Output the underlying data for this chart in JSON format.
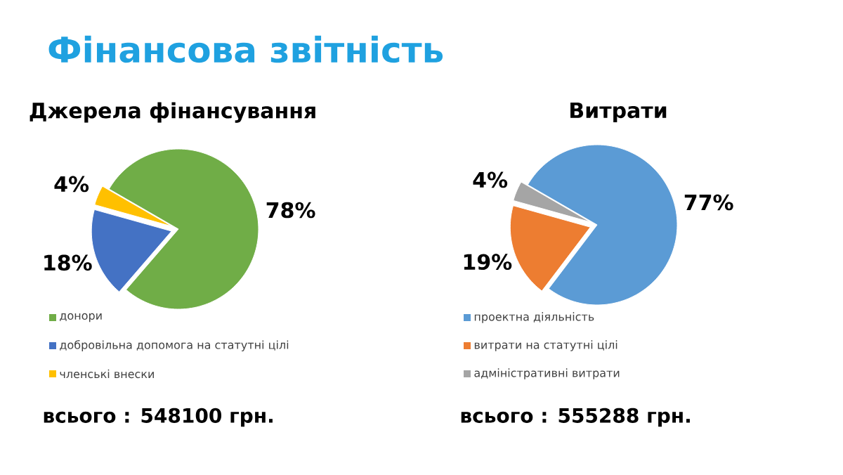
{
  "chart_data": [
    {
      "type": "pie",
      "title": "Фінансова звітність",
      "subtitle": "Джерела фінансування",
      "categories": [
        "донори",
        "добровільна допомога на статутні цілі",
        "членські внески"
      ],
      "values": [
        78,
        18,
        4
      ],
      "value_labels": [
        "78%",
        "18%",
        "4%"
      ],
      "colors": [
        "#70ad47",
        "#4472c4",
        "#ffc000"
      ],
      "legend": "bottom",
      "annotations": [
        "всього : 548100 грн."
      ]
    },
    {
      "type": "pie",
      "title": "Витрати",
      "categories": [
        "проектна діяльність",
        "витрати на статутні цілі",
        "адміністративні  витрати"
      ],
      "values": [
        77,
        19,
        4
      ],
      "value_labels": [
        "77%",
        "19%",
        "4%"
      ],
      "colors": [
        "#5b9bd5",
        "#ed7d31",
        "#a5a5a5"
      ],
      "legend": "bottom",
      "annotations": [
        "всього : 555288 грн."
      ]
    }
  ]
}
